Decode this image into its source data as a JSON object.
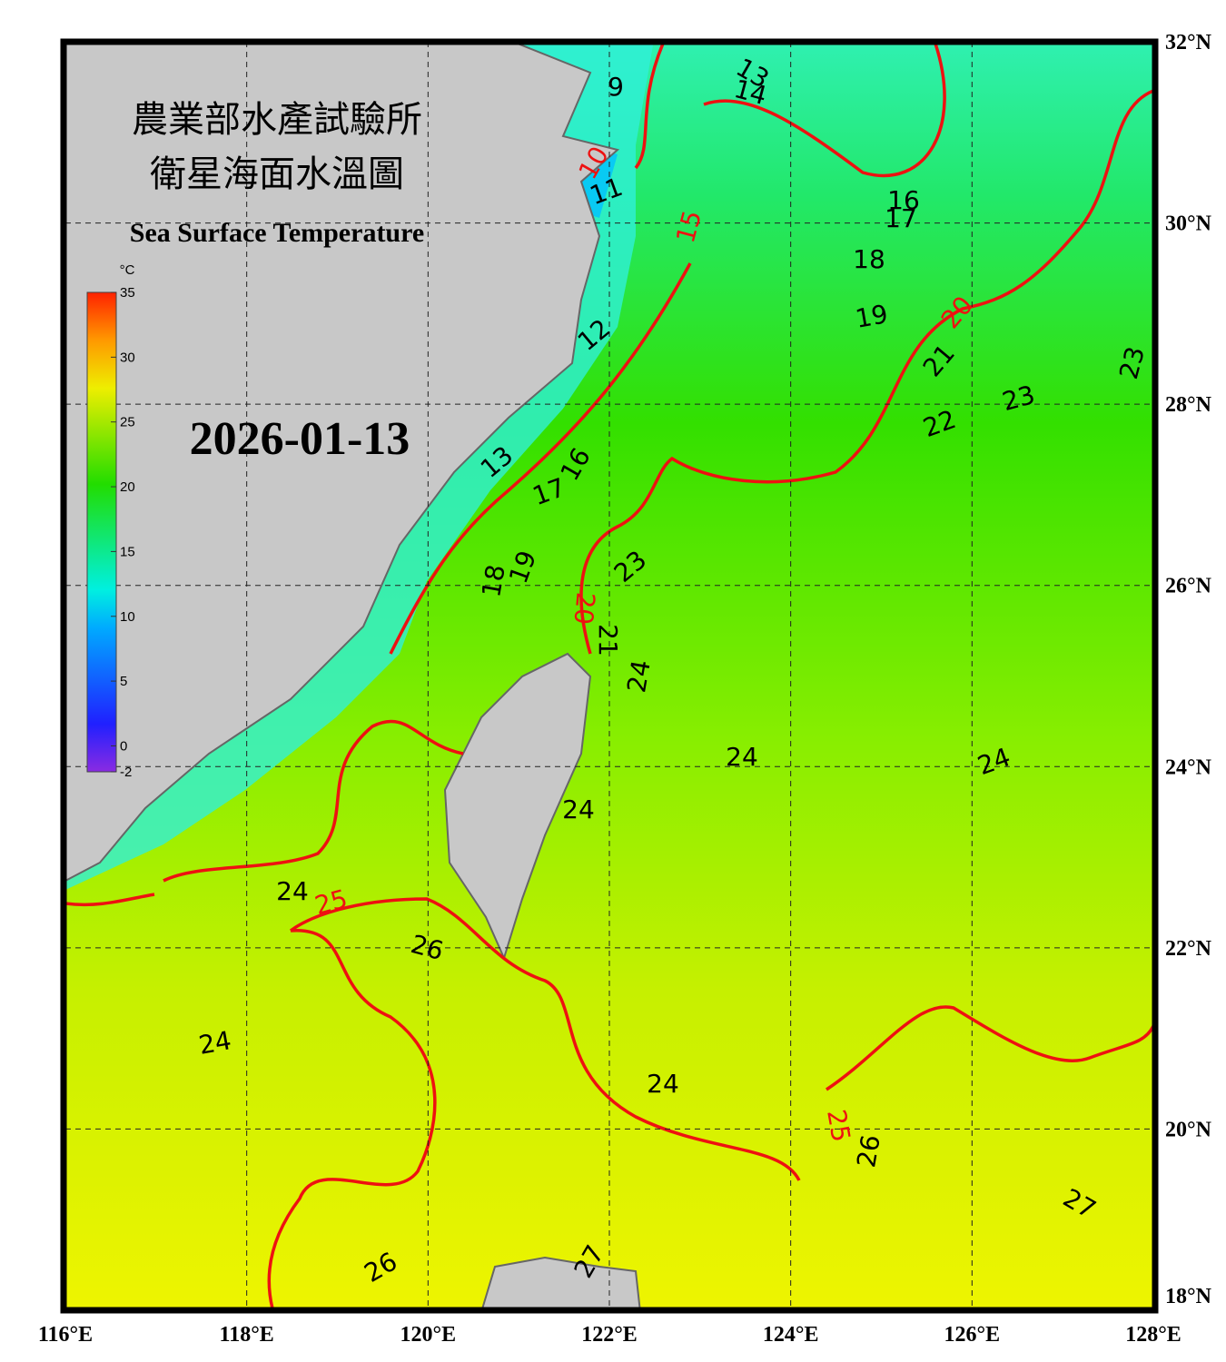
{
  "title_zh_1": "農業部水產試驗所",
  "title_zh_2": "衛星海面水溫圖",
  "title_en": "Sea Surface Temperature",
  "date": "2026-01-13",
  "colorbar": {
    "unit": "°C",
    "range": [
      -2,
      35
    ],
    "ticks": [
      35,
      30,
      25,
      20,
      15,
      10,
      5,
      0,
      -2
    ]
  },
  "lat_axis": {
    "range": [
      18,
      32
    ],
    "ticks": [
      {
        "value": 32,
        "label": "32°N"
      },
      {
        "value": 30,
        "label": "30°N"
      },
      {
        "value": 28,
        "label": "28°N"
      },
      {
        "value": 26,
        "label": "26°N"
      },
      {
        "value": 24,
        "label": "24°N"
      },
      {
        "value": 22,
        "label": "22°N"
      },
      {
        "value": 20,
        "label": "20°N"
      },
      {
        "value": 18,
        "label": "18°N"
      }
    ]
  },
  "lon_axis": {
    "range": [
      116,
      128
    ],
    "ticks": [
      {
        "value": 116,
        "label": "116°E"
      },
      {
        "value": 118,
        "label": "118°E"
      },
      {
        "value": 120,
        "label": "120°E"
      },
      {
        "value": 122,
        "label": "122°E"
      },
      {
        "value": 124,
        "label": "124°E"
      },
      {
        "value": 126,
        "label": "126°E"
      },
      {
        "value": 128,
        "label": "128°E"
      }
    ]
  },
  "contour_labels": [
    9,
    13,
    14,
    10,
    11,
    15,
    16,
    17,
    18,
    19,
    20,
    21,
    23,
    23,
    22,
    12,
    13,
    16,
    17,
    19,
    18,
    23,
    20,
    21,
    24,
    24,
    24,
    24,
    24,
    25,
    26,
    24,
    24,
    25,
    26,
    27,
    26,
    27
  ]
}
